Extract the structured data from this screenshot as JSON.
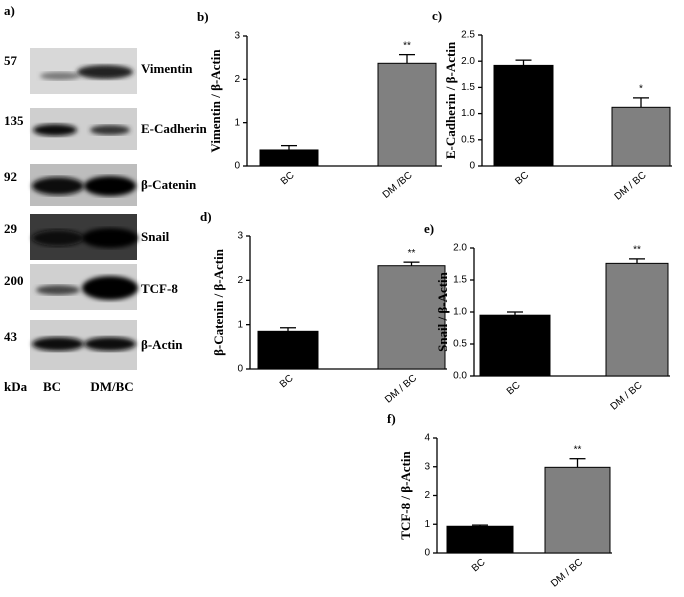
{
  "blot": {
    "panel": "a)",
    "unit": "kDa",
    "lanes": [
      "BC",
      "DM/BC"
    ],
    "bands": [
      {
        "kda": "57",
        "label": "Vimentin"
      },
      {
        "kda": "135",
        "label": "E-Cadherin"
      },
      {
        "kda": "92",
        "label": "β-Catenin"
      },
      {
        "kda": "29",
        "label": "Snail"
      },
      {
        "kda": "200",
        "label": "TCF-8"
      },
      {
        "kda": "43",
        "label": "β-Actin"
      }
    ]
  },
  "chart_data": [
    {
      "type": "bar",
      "panel": "b)",
      "ylabel": "Vimentin / β-Actin",
      "categories": [
        "BC",
        "DM /BC"
      ],
      "values": [
        0.37,
        2.37
      ],
      "errors": [
        0.1,
        0.2
      ],
      "colors": [
        "#000000",
        "#808080"
      ],
      "ylim": [
        0,
        3
      ],
      "yticks": [
        0,
        1,
        2,
        3
      ],
      "significance": "**"
    },
    {
      "type": "bar",
      "panel": "c)",
      "ylabel": "E-Cadherin / β-Actin",
      "categories": [
        "BC",
        "DM / BC"
      ],
      "values": [
        1.92,
        1.12
      ],
      "errors": [
        0.1,
        0.18
      ],
      "colors": [
        "#000000",
        "#808080"
      ],
      "ylim": [
        0,
        2.5
      ],
      "yticks": [
        0,
        0.5,
        {
          "value": 1,
          "label": "1.0"
        },
        1.5,
        {
          "value": 2,
          "label": "2.0"
        },
        2.5
      ],
      "significance": "*"
    },
    {
      "type": "bar",
      "panel": "d)",
      "ylabel": "β-Catenin / β-Actin",
      "categories": [
        "BC",
        "DM / BC"
      ],
      "values": [
        0.85,
        2.33
      ],
      "errors": [
        0.08,
        0.08
      ],
      "colors": [
        "#000000",
        "#808080"
      ],
      "ylim": [
        0,
        3
      ],
      "yticks": [
        0,
        1,
        2,
        3
      ],
      "significance": "**"
    },
    {
      "type": "bar",
      "panel": "e)",
      "ylabel": "Snail / β-Actin",
      "categories": [
        "BC",
        "DM / BC"
      ],
      "values": [
        0.95,
        1.76
      ],
      "errors": [
        0.05,
        0.07
      ],
      "colors": [
        "#000000",
        "#808080"
      ],
      "ylim": [
        0,
        2
      ],
      "yticks": [
        {
          "value": 0,
          "label": "0.0"
        },
        0.5,
        {
          "value": 1,
          "label": "1.0"
        },
        1.5,
        {
          "value": 2,
          "label": "2.0"
        }
      ],
      "significance": "**"
    },
    {
      "type": "bar",
      "panel": "f)",
      "ylabel": "TCF-8 / β-Actin",
      "categories": [
        "BC",
        "DM / BC"
      ],
      "values": [
        0.93,
        2.98
      ],
      "errors": [
        0.04,
        0.3
      ],
      "colors": [
        "#000000",
        "#808080"
      ],
      "ylim": [
        0,
        4
      ],
      "yticks": [
        0,
        1,
        2,
        3,
        4
      ],
      "significance": "**"
    }
  ]
}
